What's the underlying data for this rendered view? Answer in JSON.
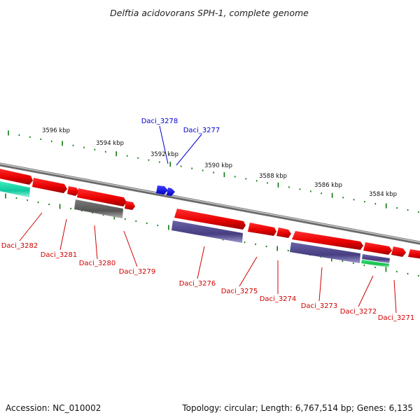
{
  "title": "Delftia acidovorans SPH-1, complete genome",
  "colors": {
    "forward_gene": "#e60000",
    "reverse_gene": "#48407a",
    "pseudo_gene": "#5e5e5e",
    "rna_gene": "#20d060",
    "highlight_gene": "#0000ff",
    "tick": "#0a7a0a",
    "backbone": "#8a8a8a",
    "label_red": "#d00000",
    "label_blue": "#0000cc"
  },
  "ticks": [
    "3596 kbp",
    "3594 kbp",
    "3592 kbp",
    "3590 kbp",
    "3588 kbp",
    "3586 kbp",
    "3584 kbp"
  ],
  "genes": [
    {
      "label": "Daci_3282",
      "color": "red",
      "kind": "gene"
    },
    {
      "label": "Daci_3281",
      "color": "red",
      "kind": "gene"
    },
    {
      "label": "Daci_3280",
      "color": "red",
      "kind": "gene"
    },
    {
      "label": "Daci_3279",
      "color": "red",
      "kind": "gene"
    },
    {
      "label": "Daci_3278",
      "color": "blue",
      "kind": "gene"
    },
    {
      "label": "Daci_3277",
      "color": "blue",
      "kind": "gene"
    },
    {
      "label": "Daci_3276",
      "color": "red",
      "kind": "gene"
    },
    {
      "label": "Daci_3275",
      "color": "red",
      "kind": "gene"
    },
    {
      "label": "Daci_3274",
      "color": "red",
      "kind": "gene"
    },
    {
      "label": "Daci_3273",
      "color": "red",
      "kind": "gene"
    },
    {
      "label": "Daci_3272",
      "color": "red",
      "kind": "gene"
    },
    {
      "label": "Daci_3271",
      "color": "red",
      "kind": "gene"
    }
  ],
  "footer": {
    "accession": "Accession: NC_010002",
    "summary": "Topology: circular; Length: 6,767,514 bp; Genes: 6,135"
  }
}
